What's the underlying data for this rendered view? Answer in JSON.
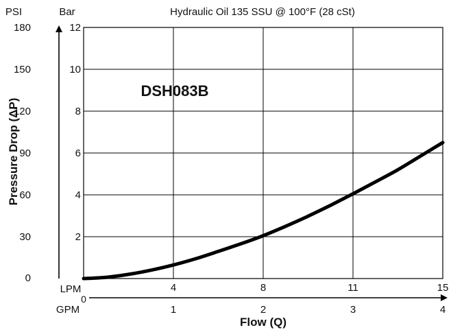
{
  "chart_data": {
    "type": "line",
    "title": "Hydraulic Oil 135 SSU @ 100°F (28 cSt)",
    "annotation": "DSH083B",
    "xlabel": "Flow (Q)",
    "ylabel": "Pressure Drop (ΔP)",
    "y_left_unit": "PSI",
    "y_right_unit": "Bar",
    "x_lpm_unit": "LPM",
    "x_gpm_unit": "GPM",
    "x_origin_label": "0",
    "psi_ticks": [
      "0",
      "30",
      "60",
      "90",
      "120",
      "150",
      "180"
    ],
    "bar_ticks": [
      "2",
      "4",
      "6",
      "8",
      "10",
      "12"
    ],
    "lpm_ticks": [
      "4",
      "8",
      "11",
      "15"
    ],
    "gpm_ticks": [
      "1",
      "2",
      "3",
      "4"
    ],
    "xlim_gpm": [
      0,
      4
    ],
    "ylim_bar": [
      0,
      12
    ],
    "grid": true,
    "series": [
      {
        "x_gpm": [
          0,
          0.25,
          0.5,
          0.75,
          1,
          1.25,
          1.5,
          1.75,
          2,
          2.25,
          2.5,
          2.75,
          3,
          3.25,
          3.5,
          3.75,
          4
        ],
        "y_bar": [
          0,
          0.06,
          0.2,
          0.4,
          0.65,
          0.95,
          1.3,
          1.66,
          2.05,
          2.5,
          2.98,
          3.5,
          4.05,
          4.62,
          5.2,
          5.85,
          6.5
        ]
      }
    ],
    "colors": {
      "line": "#000000",
      "grid": "#000000",
      "background": "#ffffff"
    }
  }
}
